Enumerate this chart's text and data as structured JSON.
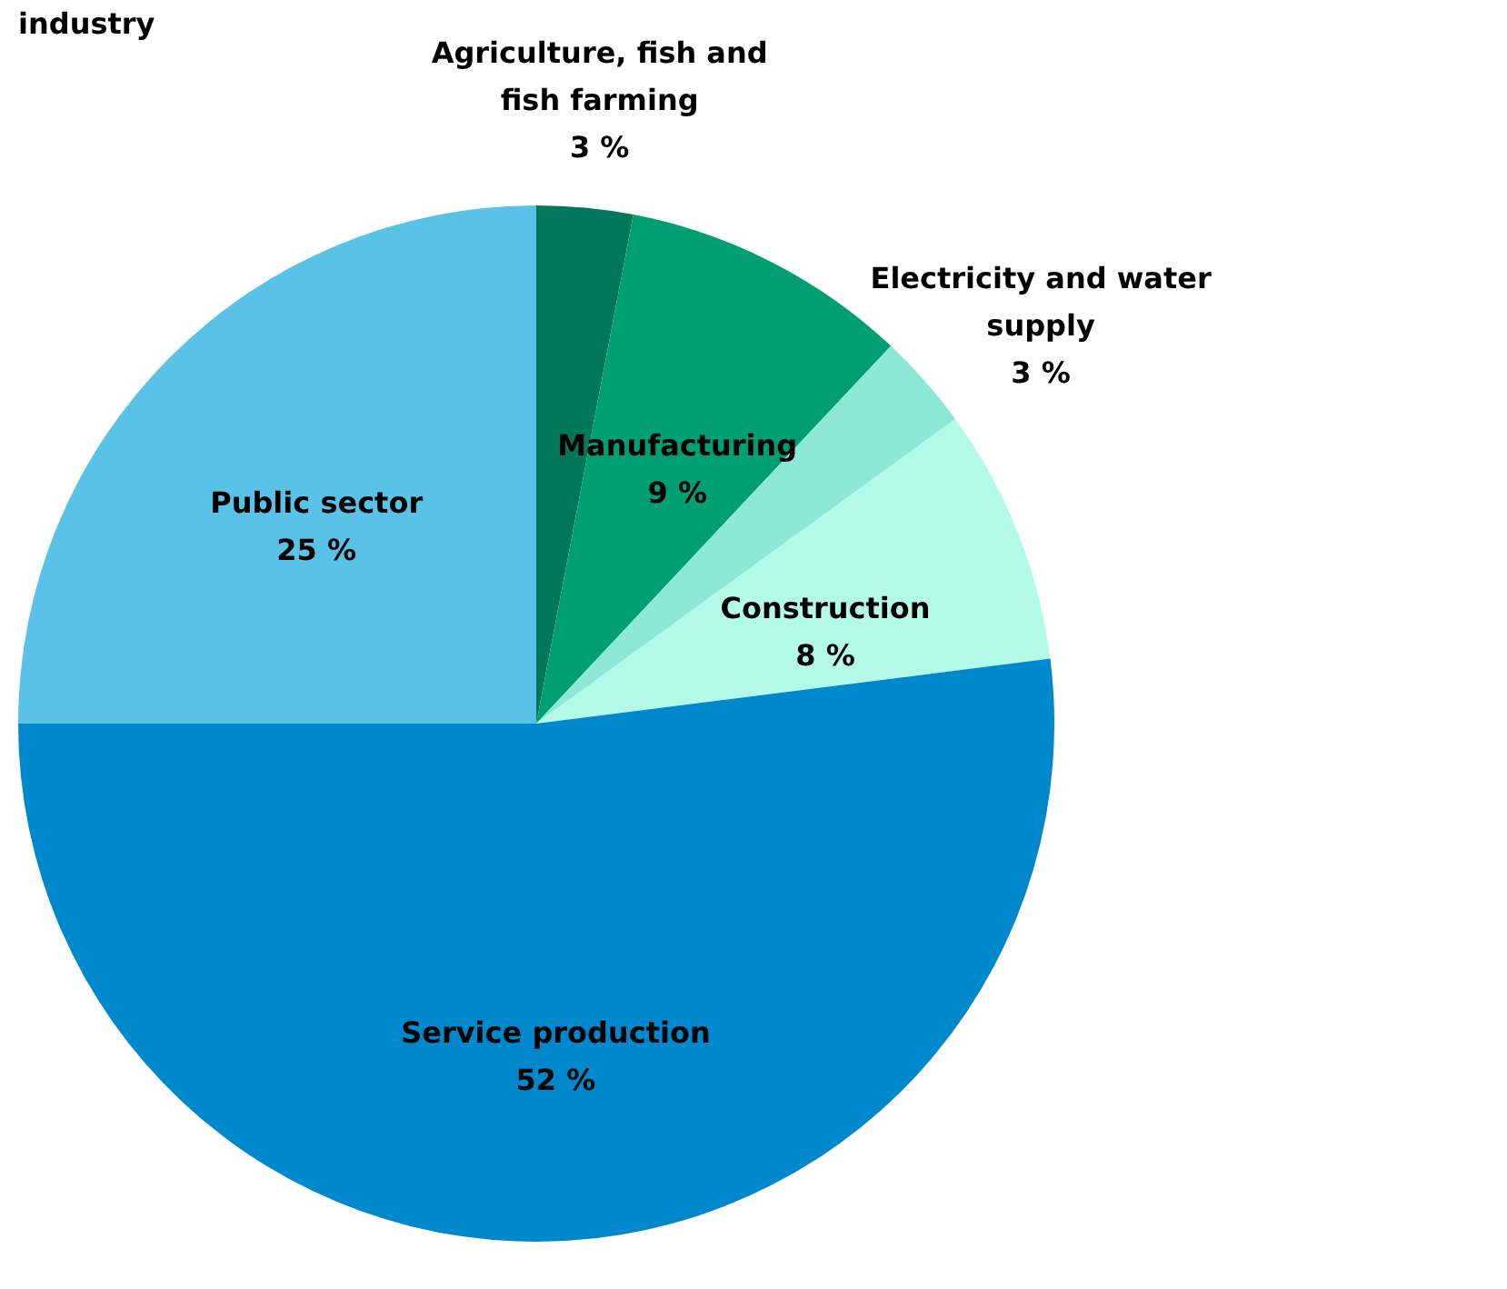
{
  "chart_data": {
    "type": "pie",
    "title": "industry",
    "categories": [
      "Agriculture, fish and fish farming",
      "Manufacturing",
      "Electricity and water supply",
      "Construction",
      "Service production",
      "Public sector"
    ],
    "values": [
      3,
      9,
      3,
      8,
      52,
      25
    ],
    "value_labels": [
      "3 %",
      "9 %",
      "3 %",
      "8 %",
      "52 %",
      "25 %"
    ],
    "colors": [
      "#00775a",
      "#009e73",
      "#8de8d8",
      "#b3fbe8",
      "#0088cc",
      "#5bc2e7"
    ],
    "legend": false
  }
}
